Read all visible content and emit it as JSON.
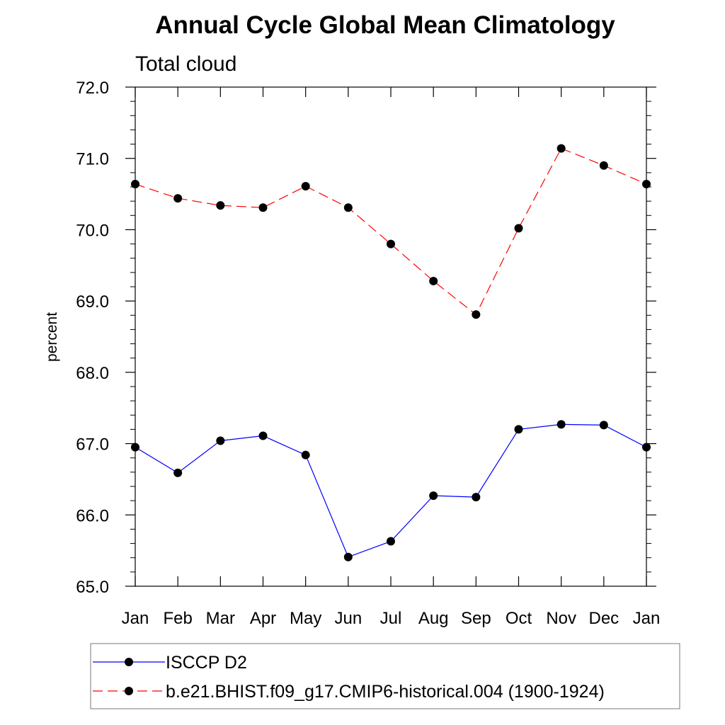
{
  "chart_data": {
    "type": "line",
    "title": "Annual Cycle Global Mean Climatology",
    "subtitle": "Total cloud",
    "ylabel": "percent",
    "xlabel": "",
    "categories": [
      "Jan",
      "Feb",
      "Mar",
      "Apr",
      "May",
      "Jun",
      "Jul",
      "Aug",
      "Sep",
      "Oct",
      "Nov",
      "Dec",
      "Jan"
    ],
    "ylim": [
      65.0,
      72.0
    ],
    "yticks": [
      "65.0",
      "66.0",
      "67.0",
      "68.0",
      "69.0",
      "70.0",
      "71.0",
      "72.0"
    ],
    "grid": false,
    "legend_position": "bottom",
    "series": [
      {
        "name": "ISCCP D2",
        "color": "#0000ff",
        "line_style": "solid",
        "marker": "filled-circle",
        "values": [
          66.95,
          66.59,
          67.04,
          67.11,
          66.84,
          65.41,
          65.63,
          66.27,
          66.25,
          67.2,
          67.27,
          67.26,
          66.95
        ]
      },
      {
        "name": "b.e21.BHIST.f09_g17.CMIP6-historical.004 (1900-1924)",
        "color": "#ff0000",
        "line_style": "dashed",
        "marker": "filled-circle",
        "values": [
          70.64,
          70.44,
          70.34,
          70.31,
          70.61,
          70.31,
          69.8,
          69.28,
          68.81,
          70.02,
          71.14,
          70.9,
          70.64
        ]
      }
    ]
  }
}
